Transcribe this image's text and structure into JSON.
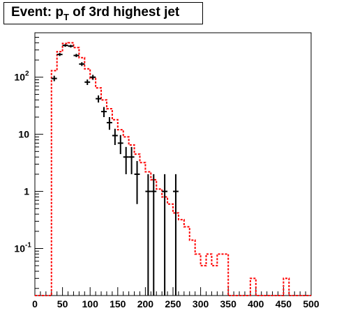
{
  "title": {
    "prefix": "Event: p",
    "subscript": "T",
    "suffix": " of 3rd highest jet"
  },
  "chart_data": {
    "type": "histogram",
    "title": "Event: p_T of 3rd highest jet",
    "xlim": [
      0,
      500
    ],
    "ylim": [
      0.015,
      600
    ],
    "yscale": "log",
    "x_ticks": [
      0,
      50,
      100,
      150,
      200,
      250,
      300,
      350,
      400,
      450,
      500
    ],
    "y_ticks": [
      {
        "value": 0.1,
        "base": "10",
        "exp": "-1"
      },
      {
        "value": 1,
        "base": "1",
        "exp": ""
      },
      {
        "value": 10,
        "base": "10",
        "exp": ""
      },
      {
        "value": 100,
        "base": "10",
        "exp": "2"
      }
    ],
    "colors": {
      "mc_line": "#ff0000",
      "data_points": "#000000",
      "frame": "#000000"
    },
    "mc_histogram": {
      "bin_width": 10,
      "values": [
        0,
        0,
        0,
        130,
        280,
        390,
        400,
        330,
        220,
        140,
        95,
        65,
        40,
        28,
        18,
        12,
        9,
        6.5,
        4.5,
        3.2,
        2.2,
        1.6,
        1.1,
        0.8,
        0.6,
        0.42,
        0.32,
        0.24,
        0.14,
        0.08,
        0.05,
        0.08,
        0.05,
        0.08,
        0.08,
        0,
        0,
        0,
        0,
        0.03,
        0,
        0,
        0,
        0,
        0,
        0.03,
        0,
        0,
        0,
        0
      ]
    },
    "data_points": [
      {
        "x": 35,
        "y": 95,
        "lo": 85,
        "hi": 106
      },
      {
        "x": 45,
        "y": 250,
        "lo": 235,
        "hi": 266
      },
      {
        "x": 55,
        "y": 360,
        "lo": 341,
        "hi": 379
      },
      {
        "x": 65,
        "y": 350,
        "lo": 331,
        "hi": 369
      },
      {
        "x": 75,
        "y": 240,
        "lo": 225,
        "hi": 256
      },
      {
        "x": 85,
        "y": 170,
        "lo": 157,
        "hi": 183
      },
      {
        "x": 95,
        "y": 82,
        "lo": 73,
        "hi": 91
      },
      {
        "x": 105,
        "y": 100,
        "lo": 90,
        "hi": 110
      },
      {
        "x": 115,
        "y": 42,
        "lo": 36,
        "hi": 48
      },
      {
        "x": 125,
        "y": 25,
        "lo": 20,
        "hi": 30
      },
      {
        "x": 135,
        "y": 16,
        "lo": 12,
        "hi": 20
      },
      {
        "x": 145,
        "y": 9.5,
        "lo": 6.5,
        "hi": 12.5
      },
      {
        "x": 155,
        "y": 7,
        "lo": 4.5,
        "hi": 9.7
      },
      {
        "x": 165,
        "y": 4,
        "lo": 2,
        "hi": 6
      },
      {
        "x": 175,
        "y": 4,
        "lo": 2,
        "hi": 6
      },
      {
        "x": 185,
        "y": 2,
        "lo": 0.6,
        "hi": 3.4
      },
      {
        "x": 205,
        "y": 1,
        "lo": 0.01,
        "hi": 2
      },
      {
        "x": 215,
        "y": 1,
        "lo": 0.01,
        "hi": 2
      },
      {
        "x": 235,
        "y": 1,
        "lo": 0.01,
        "hi": 2
      },
      {
        "x": 255,
        "y": 1,
        "lo": 0.01,
        "hi": 2
      }
    ]
  }
}
